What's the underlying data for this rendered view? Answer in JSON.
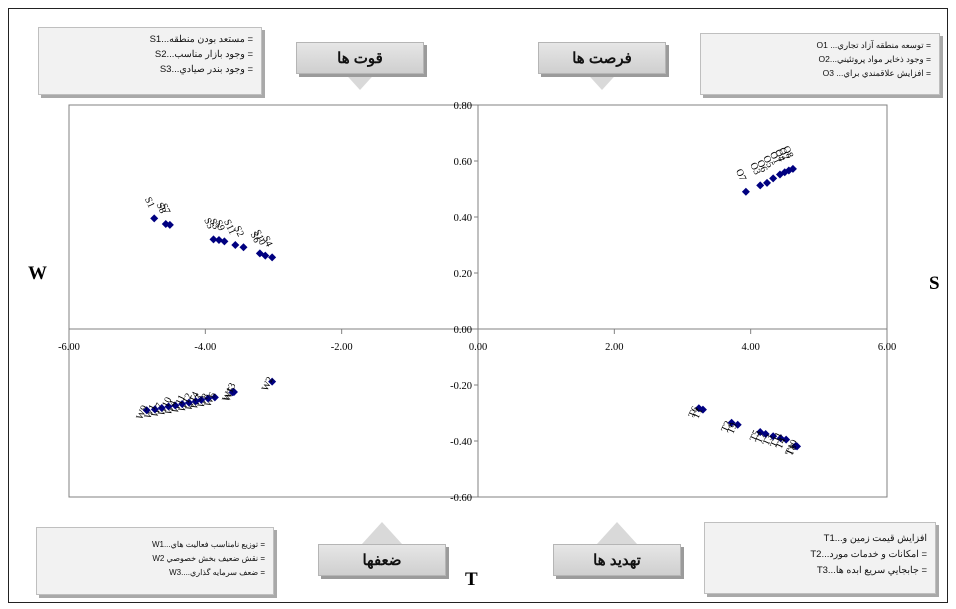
{
  "legends": {
    "strengths": [
      "= مستعد بودن منطقه...S1",
      "= وجود بازار مناسب...S2",
      "= وجود بندر صيادي...S3"
    ],
    "opportunities": [
      "= توسعه منطقه آزاد تجاري... O1",
      "= وجود ذخاير مواد پروتئيني...O2",
      "= افزايش علاقمندي براي... O3"
    ],
    "weaknesses": [
      "= توزيع نامناسب فعاليت هاي...W1",
      "= نقش ضعيف بخش خصوصي W2",
      "= ضعف سرمايه گذاري....W3"
    ],
    "threats": [
      "افزايش قيمت زمين و...T1",
      "= امكانات و خدمات مورد...T2",
      "= جابجايي سريع ابده ها...T3"
    ]
  },
  "ribbons": {
    "strengths": "قوت ها",
    "opportunities": "فرصت ها",
    "weaknesses": "ضعفها",
    "threats": "تهديد ها"
  },
  "axis_letters": {
    "left": "W",
    "right": "S",
    "bottom": "T"
  },
  "chart_data": {
    "type": "scatter",
    "xlim": [
      -6,
      6
    ],
    "ylim": [
      -0.6,
      0.8
    ],
    "x_ticks": [
      "-6.00",
      "-4.00",
      "-2.00",
      "0.00",
      "2.00",
      "4.00",
      "6.00"
    ],
    "y_ticks": [
      "0.80",
      "0.60",
      "0.40",
      "0.20",
      "0.00",
      "-0.20",
      "-0.40",
      "-0.60"
    ],
    "grid": false,
    "marker_color": "#000080",
    "points": [
      {
        "x": -4.75,
        "y": 0.395,
        "label": "S1"
      },
      {
        "x": -4.58,
        "y": 0.375,
        "label": "S8"
      },
      {
        "x": -4.52,
        "y": 0.372,
        "label": "S7"
      },
      {
        "x": -3.88,
        "y": 0.32,
        "label": "S5"
      },
      {
        "x": -3.8,
        "y": 0.318,
        "label": "S3"
      },
      {
        "x": -3.72,
        "y": 0.313,
        "label": "S9"
      },
      {
        "x": -3.56,
        "y": 0.3,
        "label": "S11"
      },
      {
        "x": -3.44,
        "y": 0.292,
        "label": "S2"
      },
      {
        "x": -3.2,
        "y": 0.27,
        "label": "S6"
      },
      {
        "x": -3.12,
        "y": 0.262,
        "label": "S10"
      },
      {
        "x": -3.02,
        "y": 0.256,
        "label": "S4"
      },
      {
        "x": 3.93,
        "y": 0.49,
        "label": "O7"
      },
      {
        "x": 4.14,
        "y": 0.513,
        "label": "O3"
      },
      {
        "x": 4.24,
        "y": 0.522,
        "label": "O6"
      },
      {
        "x": 4.33,
        "y": 0.538,
        "label": "O5"
      },
      {
        "x": 4.43,
        "y": 0.552,
        "label": "O1"
      },
      {
        "x": 4.5,
        "y": 0.56,
        "label": "O4"
      },
      {
        "x": 4.56,
        "y": 0.566,
        "label": "O2"
      },
      {
        "x": 4.62,
        "y": 0.572,
        "label": "O8"
      },
      {
        "x": -3.02,
        "y": -0.188,
        "label": "W2"
      },
      {
        "x": -3.58,
        "y": -0.225,
        "label": "W5"
      },
      {
        "x": -3.6,
        "y": -0.226,
        "label": "W13"
      },
      {
        "x": -3.86,
        "y": -0.244,
        "label": "W6"
      },
      {
        "x": -3.96,
        "y": -0.248,
        "label": "W8"
      },
      {
        "x": -4.06,
        "y": -0.253,
        "label": "W3"
      },
      {
        "x": -4.14,
        "y": -0.258,
        "label": "W14"
      },
      {
        "x": -4.24,
        "y": -0.263,
        "label": "W12"
      },
      {
        "x": -4.34,
        "y": -0.268,
        "label": "W11"
      },
      {
        "x": -4.44,
        "y": -0.273,
        "label": "W4"
      },
      {
        "x": -4.54,
        "y": -0.277,
        "label": "W10"
      },
      {
        "x": -4.64,
        "y": -0.282,
        "label": "W7"
      },
      {
        "x": -4.74,
        "y": -0.287,
        "label": "W1"
      },
      {
        "x": -4.86,
        "y": -0.29,
        "label": "W9"
      },
      {
        "x": 3.24,
        "y": -0.283,
        "label": "T6"
      },
      {
        "x": 3.3,
        "y": -0.288,
        "label": "T1"
      },
      {
        "x": 3.72,
        "y": -0.335,
        "label": "T2"
      },
      {
        "x": 3.81,
        "y": -0.342,
        "label": "T9"
      },
      {
        "x": 4.14,
        "y": -0.368,
        "label": "T5"
      },
      {
        "x": 4.22,
        "y": -0.375,
        "label": "T7"
      },
      {
        "x": 4.33,
        "y": -0.383,
        "label": "T3"
      },
      {
        "x": 4.44,
        "y": -0.39,
        "label": "T11"
      },
      {
        "x": 4.52,
        "y": -0.395,
        "label": "T4"
      },
      {
        "x": 4.66,
        "y": -0.418,
        "label": "T10"
      },
      {
        "x": 4.68,
        "y": -0.419,
        "label": "T8"
      }
    ]
  }
}
